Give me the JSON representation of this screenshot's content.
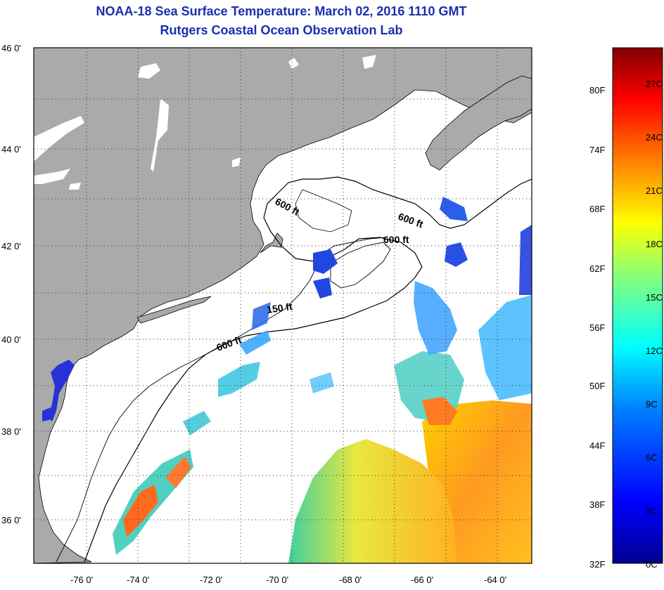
{
  "title": "NOAA-18 Sea Surface Temperature:  March 02, 2016 1110 GMT",
  "subtitle": "Rutgers Coastal Ocean Observation Lab",
  "map": {
    "lat_labels": [
      "46 0'",
      "44 0'",
      "42 0'",
      "40 0'",
      "38 0'",
      "36 0'"
    ],
    "lon_labels": [
      "-76 0'",
      "-74 0'",
      "-72 0'",
      "-70 0'",
      "-68 0'",
      "-66 0'",
      "-64 0'"
    ],
    "contour_labels": [
      "600 ft",
      "600 ft",
      "600 ft",
      "150 ft",
      "600 ft"
    ],
    "colors": {
      "land": "#aaaaaa",
      "ocean": "#ffffff",
      "contour": "#000000"
    }
  },
  "colorbar": {
    "fahrenheit_labels": [
      "80F",
      "74F",
      "68F",
      "62F",
      "56F",
      "50F",
      "44F",
      "38F",
      "32F"
    ],
    "celsius_labels": [
      "27C",
      "24C",
      "21C",
      "18C",
      "15C",
      "12C",
      "9C",
      "6C",
      "3C",
      "0C"
    ],
    "colors": [
      "#00008f",
      "#0000ff",
      "#0080ff",
      "#00ffff",
      "#80ff80",
      "#ffff00",
      "#ff8000",
      "#ff0000",
      "#800000"
    ]
  }
}
